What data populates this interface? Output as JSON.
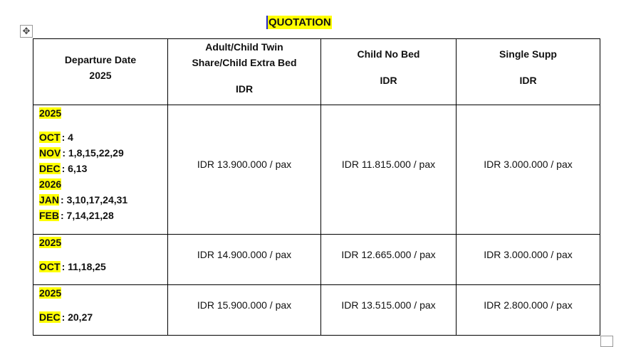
{
  "title": "QUOTATION",
  "icons": {
    "move": "move-handle-icon",
    "resize": "resize-handle-icon"
  },
  "highlight_color": "#ffff00",
  "header": {
    "col1": [
      "Departure Date",
      "2025"
    ],
    "col2": [
      "Adult/Child Twin",
      "Share/Child Extra Bed",
      "IDR"
    ],
    "col3": [
      "Child No Bed",
      "IDR"
    ],
    "col4": [
      "Single Supp",
      "IDR"
    ]
  },
  "rows": [
    {
      "dates": [
        {
          "year": "2025"
        },
        {
          "month": "OCT",
          "days": ": 4"
        },
        {
          "month": "NOV",
          "days": ": 1,8,15,22,29"
        },
        {
          "month": "DEC",
          "days": ": 6,13"
        },
        {
          "year": "2026"
        },
        {
          "month": "JAN",
          "days": ": 3,10,17,24,31"
        },
        {
          "month": "FEB",
          "days": ": 7,14,21,28"
        }
      ],
      "adult": "IDR 13.900.000 / pax",
      "child": "IDR 11.815.000 / pax",
      "single": "IDR 3.000.000 / pax"
    },
    {
      "dates": [
        {
          "year": "2025"
        },
        {
          "month": "OCT",
          "days": ": 11,18,25"
        }
      ],
      "adult": "IDR 14.900.000 / pax",
      "child": "IDR 12.665.000 / pax",
      "single": "IDR 3.000.000 / pax"
    },
    {
      "dates": [
        {
          "year": "2025"
        },
        {
          "month": "DEC",
          "days": ": 20,27"
        }
      ],
      "adult": "IDR 15.900.000 / pax",
      "child": "IDR 13.515.000 / pax",
      "single": "IDR 2.800.000 / pax"
    }
  ]
}
